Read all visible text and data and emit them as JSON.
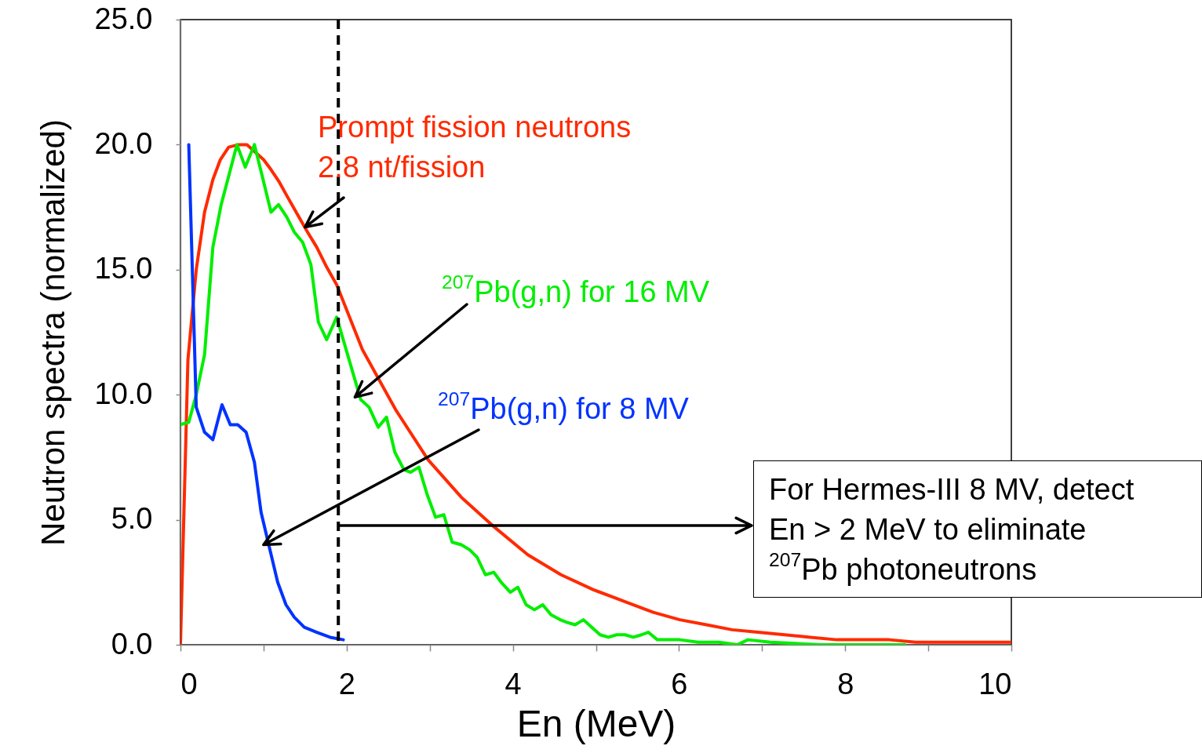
{
  "chart_data": {
    "type": "line",
    "xlabel": "En (MeV)",
    "ylabel": "Neutron spectra (normalized)",
    "xlim": [
      0,
      10
    ],
    "ylim": [
      0,
      25
    ],
    "xticks": [
      0,
      {
        "value": 1,
        "label": null
      },
      2,
      {
        "value": 3,
        "label": null
      },
      4,
      {
        "value": 5,
        "label": null
      },
      6,
      {
        "value": 7,
        "label": null
      },
      8,
      {
        "value": 9,
        "label": null
      },
      10
    ],
    "yticks": [
      {
        "value": 0,
        "label": "0.0"
      },
      {
        "value": 5,
        "label": "5.0"
      },
      {
        "value": 10,
        "label": "10.0"
      },
      {
        "value": 15,
        "label": "15.0"
      },
      {
        "value": 20,
        "label": "20.0"
      },
      {
        "value": 25,
        "label": "25.0"
      }
    ],
    "series": [
      {
        "color": "#ff2a00",
        "x": [
          0,
          0.09,
          0.19,
          0.29,
          0.39,
          0.48,
          0.58,
          0.7,
          0.8,
          0.9,
          1.0,
          1.09,
          1.19,
          1.29,
          1.41,
          1.53,
          1.64,
          1.76,
          1.88,
          2.19,
          2.59,
          2.98,
          3.38,
          3.78,
          4.18,
          4.58,
          4.97,
          5.37,
          5.69,
          6.01,
          6.33,
          6.64,
          6.95,
          7.27,
          7.58,
          7.9,
          8.22,
          8.53,
          8.85,
          9.16,
          9.48,
          10
        ],
        "values": [
          0,
          11.4,
          15.0,
          17.3,
          18.6,
          19.4,
          19.9,
          20.0,
          20.0,
          19.7,
          19.4,
          19.0,
          18.5,
          17.9,
          17.2,
          16.5,
          15.9,
          15.1,
          14.4,
          11.8,
          9.4,
          7.4,
          5.9,
          4.7,
          3.6,
          2.8,
          2.2,
          1.7,
          1.3,
          1.0,
          0.8,
          0.6,
          0.5,
          0.4,
          0.3,
          0.2,
          0.2,
          0.2,
          0.1,
          0.1,
          0.1,
          0.1
        ]
      },
      {
        "color": "#00ee00",
        "x": [
          0,
          0.1,
          0.19,
          0.29,
          0.39,
          0.49,
          0.68,
          0.78,
          0.89,
          0.98,
          1.09,
          1.18,
          1.28,
          1.37,
          1.47,
          1.57,
          1.66,
          1.76,
          1.88,
          2.17,
          2.27,
          2.38,
          2.48,
          2.58,
          2.69,
          2.77,
          2.87,
          2.97,
          3.07,
          3.17,
          3.27,
          3.38,
          3.48,
          3.57,
          3.67,
          3.77,
          3.86,
          3.97,
          4.06,
          4.16,
          4.26,
          4.36,
          4.46,
          4.57,
          4.65,
          4.75,
          4.85,
          4.95,
          5.05,
          5.15,
          5.25,
          5.35,
          5.45,
          5.55,
          5.63,
          5.74,
          6.01,
          6.23,
          6.48,
          6.7,
          6.83,
          7.1,
          7.7,
          8.72
        ],
        "values": [
          8.8,
          8.9,
          10.0,
          11.6,
          15.9,
          17.6,
          20.0,
          19.1,
          20.0,
          18.8,
          17.3,
          17.6,
          17.1,
          16.5,
          16.1,
          15.2,
          12.9,
          12.2,
          13.1,
          9.8,
          9.5,
          8.7,
          9.1,
          7.7,
          7.0,
          6.9,
          7.1,
          6.0,
          5.1,
          5.2,
          4.1,
          4.0,
          3.8,
          3.5,
          2.8,
          2.9,
          2.5,
          2.1,
          2.3,
          1.6,
          1.4,
          1.6,
          1.2,
          1.0,
          0.9,
          0.8,
          1.0,
          0.7,
          0.4,
          0.3,
          0.4,
          0.4,
          0.3,
          0.4,
          0.5,
          0.2,
          0.2,
          0.1,
          0.1,
          0.0,
          0.2,
          0.1,
          0.0,
          0.0
        ]
      },
      {
        "color": "#0033ff",
        "x": [
          0.1,
          0.19,
          0.29,
          0.39,
          0.5,
          0.6,
          0.69,
          0.79,
          0.89,
          0.97,
          1.07,
          1.17,
          1.27,
          1.37,
          1.49,
          1.64,
          1.8,
          1.96
        ],
        "values": [
          20.0,
          9.5,
          8.5,
          8.2,
          9.6,
          8.8,
          8.8,
          8.5,
          7.3,
          5.3,
          3.9,
          2.5,
          1.6,
          1.1,
          0.7,
          0.5,
          0.3,
          0.2
        ]
      }
    ],
    "ref_lines": [
      {
        "axis": "x",
        "value": 1.9,
        "color": "#000000",
        "line_style": "dashed"
      }
    ],
    "annotations": [
      {
        "text": "Prompt fission neutrons\n2.8 nt/fission",
        "x": 1.5,
        "y": 16.7
      },
      {
        "text": "$^{207}$Pb(g,n) for 16 MV",
        "x": 2.1,
        "y": 9.9
      },
      {
        "text": "$^{207}$Pb(g,n) for 8 MV",
        "x": 1.0,
        "y": 4.0
      },
      "For Hermes-III 8 MV, detect\nEn > 2 MeV to eliminate\n$^{207}$Pb photoneutrons"
    ]
  }
}
